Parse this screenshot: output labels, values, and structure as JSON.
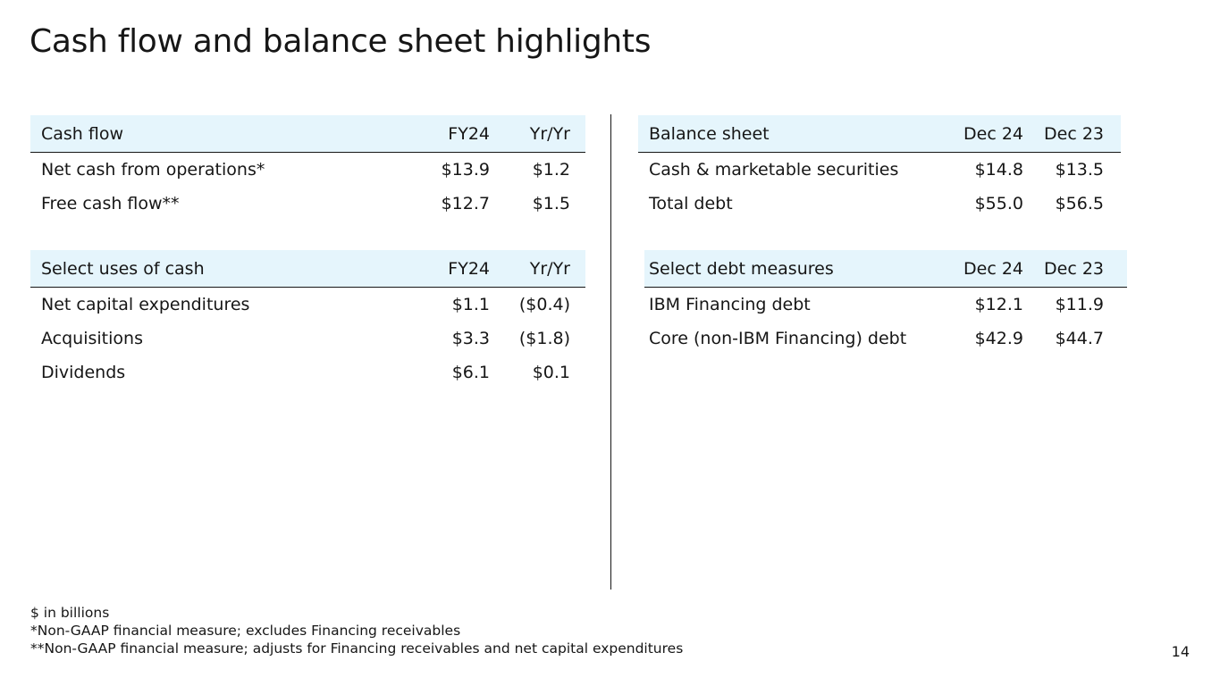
{
  "title": "Cash flow and balance sheet highlights",
  "cash_flow": {
    "header": {
      "label": "Cash flow",
      "col1": "FY24",
      "col2": "Yr/Yr"
    },
    "rows": [
      {
        "label": "Net cash from operations*",
        "col1": "$13.9",
        "col2": "$1.2"
      },
      {
        "label": "Free cash flow**",
        "col1": "$12.7",
        "col2": "$1.5"
      }
    ]
  },
  "uses_of_cash": {
    "header": {
      "label": "Select uses of cash",
      "col1": "FY24",
      "col2": "Yr/Yr"
    },
    "rows": [
      {
        "label": "Net capital expenditures",
        "col1": "$1.1",
        "col2": "($0.4)"
      },
      {
        "label": "Acquisitions",
        "col1": "$3.3",
        "col2": "($1.8)"
      },
      {
        "label": "Dividends",
        "col1": "$6.1",
        "col2": "$0.1"
      }
    ]
  },
  "balance_sheet": {
    "header": {
      "label": "Balance sheet",
      "col1": "Dec 24",
      "col2": "Dec 23"
    },
    "rows": [
      {
        "label": "Cash & marketable securities",
        "col1": "$14.8",
        "col2": "$13.5"
      },
      {
        "label": "Total debt",
        "col1": "$55.0",
        "col2": "$56.5"
      }
    ]
  },
  "debt_measures": {
    "header": {
      "label": "Select debt measures",
      "col1": "Dec 24",
      "col2": "Dec 23"
    },
    "rows": [
      {
        "label": "IBM Financing debt",
        "col1": "$12.1",
        "col2": "$11.9"
      },
      {
        "label": "Core (non-IBM Financing) debt",
        "col1": "$42.9",
        "col2": "$44.7"
      }
    ]
  },
  "footnotes": [
    "$ in billions",
    "*Non-GAAP financial measure; excludes Financing receivables",
    "**Non-GAAP financial measure; adjusts for Financing receivables and net capital expenditures"
  ],
  "page_number": "14",
  "colors": {
    "header_bg": "#e5f5fc",
    "text": "#161616",
    "rule": "#161616"
  }
}
